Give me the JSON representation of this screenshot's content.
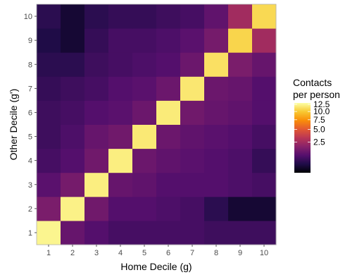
{
  "chart_data": {
    "type": "heatmap",
    "xlabel": "Home Decile (g)",
    "ylabel": "Other Decile (g')",
    "x_categories": [
      "1",
      "2",
      "3",
      "4",
      "5",
      "6",
      "7",
      "8",
      "9",
      "10"
    ],
    "y_categories": [
      "1",
      "2",
      "3",
      "4",
      "5",
      "6",
      "7",
      "8",
      "9",
      "10"
    ],
    "legend": {
      "title_lines": [
        "Contacts",
        "per person"
      ],
      "ticks": [
        {
          "value": 2.5,
          "label": "2.5"
        },
        {
          "value": 5.0,
          "label": "5.0"
        },
        {
          "value": 7.5,
          "label": "7.5"
        },
        {
          "value": 10.0,
          "label": "10.0"
        },
        {
          "value": 12.5,
          "label": "12.5"
        }
      ],
      "scale": "sqrt",
      "placement": "right",
      "range": [
        0,
        13
      ]
    },
    "colorscale": [
      "#000004",
      "#1f0c48",
      "#550f6d",
      "#88226a",
      "#ba3655",
      "#e35933",
      "#f98e09",
      "#f8c932",
      "#fcffa4"
    ],
    "grid": false,
    "values": [
      [
        12.4,
        1.1,
        0.8,
        0.6,
        0.6,
        0.6,
        0.6,
        0.5,
        0.5,
        0.5
      ],
      [
        1.5,
        12.2,
        1.3,
        0.8,
        0.8,
        0.7,
        0.6,
        0.3,
        0.1,
        0.1
      ],
      [
        0.9,
        1.4,
        12.0,
        1.1,
        1.0,
        0.8,
        0.8,
        0.8,
        0.7,
        0.6
      ],
      [
        0.6,
        0.8,
        1.3,
        12.0,
        1.2,
        1.0,
        0.9,
        0.8,
        0.7,
        0.4
      ],
      [
        0.5,
        0.7,
        1.1,
        1.3,
        11.7,
        1.2,
        1.0,
        0.9,
        0.8,
        0.6
      ],
      [
        0.5,
        0.6,
        0.8,
        0.9,
        1.2,
        11.8,
        1.3,
        1.1,
        1.0,
        0.8
      ],
      [
        0.4,
        0.5,
        0.6,
        0.8,
        0.9,
        1.2,
        11.6,
        1.2,
        1.1,
        0.8
      ],
      [
        0.3,
        0.3,
        0.5,
        0.6,
        0.7,
        0.8,
        1.2,
        11.2,
        1.5,
        1.1
      ],
      [
        0.2,
        0.1,
        0.4,
        0.6,
        0.6,
        0.7,
        0.9,
        1.4,
        10.6,
        2.5
      ],
      [
        0.3,
        0.1,
        0.3,
        0.4,
        0.4,
        0.5,
        0.6,
        1.0,
        2.5,
        10.8
      ]
    ]
  }
}
